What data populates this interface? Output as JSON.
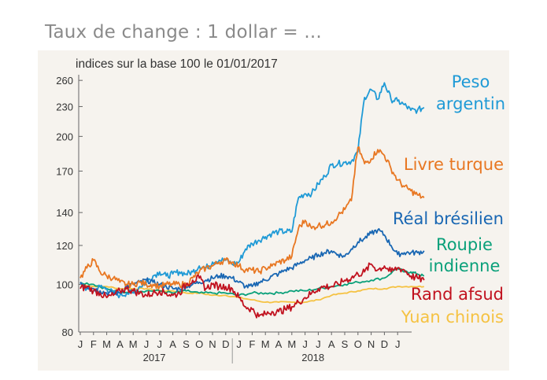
{
  "title": "Taux de change : 1 dollar = ...",
  "chart_data": {
    "type": "line",
    "subtitle": "indices sur la base 100 le 01/01/2017",
    "y_scale": "log",
    "ylim": [
      80,
      265
    ],
    "y_ticks": [
      80,
      100,
      120,
      140,
      170,
      200,
      230,
      260
    ],
    "x_month_labels": [
      "J",
      "F",
      "M",
      "A",
      "M",
      "J",
      "J",
      "A",
      "S",
      "O",
      "N",
      "D",
      "J",
      "F",
      "M",
      "A",
      "M",
      "J",
      "J",
      "A",
      "S",
      "O",
      "N",
      "D",
      "J"
    ],
    "x_year_labels": [
      "2017",
      "2018"
    ],
    "series": [
      {
        "name": "Peso argentin",
        "color": "#1f9ad6",
        "points": [
          [
            0,
            100
          ],
          [
            0.5,
            98
          ],
          [
            1,
            97
          ],
          [
            1.5,
            99
          ],
          [
            2,
            98
          ],
          [
            2.5,
            96
          ],
          [
            3,
            95
          ],
          [
            3.5,
            96
          ],
          [
            4,
            96
          ],
          [
            4.5,
            99
          ],
          [
            5,
            101
          ],
          [
            5.5,
            104
          ],
          [
            6,
            106
          ],
          [
            6.5,
            104
          ],
          [
            7,
            105
          ],
          [
            7.5,
            106
          ],
          [
            8,
            105
          ],
          [
            8.5,
            106
          ],
          [
            9,
            109
          ],
          [
            9.5,
            108
          ],
          [
            10,
            111
          ],
          [
            10.5,
            112
          ],
          [
            11,
            112
          ],
          [
            11.5,
            110
          ],
          [
            12,
            111
          ],
          [
            12.5,
            118
          ],
          [
            13,
            121
          ],
          [
            13.5,
            123
          ],
          [
            14,
            125
          ],
          [
            14.5,
            127
          ],
          [
            15,
            128
          ],
          [
            15.5,
            128
          ],
          [
            16,
            128
          ],
          [
            16.5,
            150
          ],
          [
            17,
            153
          ],
          [
            17.5,
            153
          ],
          [
            18,
            160
          ],
          [
            18.5,
            166
          ],
          [
            19,
            175
          ],
          [
            19.5,
            176
          ],
          [
            20,
            177
          ],
          [
            20.5,
            178
          ],
          [
            21,
            186
          ],
          [
            21.5,
            240
          ],
          [
            22,
            249
          ],
          [
            22.5,
            238
          ],
          [
            23,
            257
          ],
          [
            23.5,
            238
          ],
          [
            24,
            236
          ],
          [
            24.5,
            232
          ],
          [
            25,
            226
          ],
          [
            25.5,
            226
          ],
          [
            26,
            229
          ]
        ]
      },
      {
        "name": "Livre turque",
        "color": "#e87722",
        "points": [
          [
            0,
            103
          ],
          [
            0.5,
            108
          ],
          [
            1,
            112
          ],
          [
            1.5,
            106
          ],
          [
            2,
            104
          ],
          [
            2.5,
            103
          ],
          [
            3,
            101
          ],
          [
            3.5,
            100
          ],
          [
            4,
            100
          ],
          [
            4.5,
            101
          ],
          [
            5,
            100
          ],
          [
            5.5,
            100
          ],
          [
            6,
            99
          ],
          [
            6.5,
            100
          ],
          [
            7,
            100
          ],
          [
            7.5,
            100
          ],
          [
            8,
            100
          ],
          [
            8.5,
            103
          ],
          [
            9,
            106
          ],
          [
            9.5,
            108
          ],
          [
            10,
            109
          ],
          [
            10.5,
            111
          ],
          [
            11,
            112
          ],
          [
            11.5,
            111
          ],
          [
            12,
            109
          ],
          [
            12.5,
            107
          ],
          [
            13,
            107
          ],
          [
            13.5,
            106
          ],
          [
            14,
            108
          ],
          [
            14.5,
            109
          ],
          [
            15,
            111
          ],
          [
            15.5,
            112
          ],
          [
            16,
            114
          ],
          [
            16.5,
            130
          ],
          [
            17,
            135
          ],
          [
            17.5,
            130
          ],
          [
            18,
            132
          ],
          [
            18.5,
            132
          ],
          [
            19,
            134
          ],
          [
            19.5,
            138
          ],
          [
            20,
            142
          ],
          [
            20.5,
            148
          ],
          [
            21,
            190
          ],
          [
            21.5,
            176
          ],
          [
            22,
            180
          ],
          [
            22.5,
            188
          ],
          [
            23,
            183
          ],
          [
            23.5,
            172
          ],
          [
            24,
            163
          ],
          [
            24.5,
            158
          ],
          [
            25,
            155
          ],
          [
            25.5,
            152
          ],
          [
            26,
            150
          ]
        ]
      },
      {
        "name": "Réal brésilien",
        "color": "#1967b3",
        "points": [
          [
            0,
            101
          ],
          [
            0.5,
            99
          ],
          [
            1,
            98
          ],
          [
            1.5,
            97
          ],
          [
            2,
            96
          ],
          [
            2.5,
            96
          ],
          [
            3,
            96
          ],
          [
            3.5,
            99
          ],
          [
            4,
            100
          ],
          [
            4.5,
            101
          ],
          [
            5,
            102
          ],
          [
            5.5,
            101
          ],
          [
            6,
            100
          ],
          [
            6.5,
            99
          ],
          [
            7,
            98
          ],
          [
            7.5,
            98
          ],
          [
            8,
            99
          ],
          [
            8.5,
            100
          ],
          [
            9,
            101
          ],
          [
            9.5,
            102
          ],
          [
            10,
            103
          ],
          [
            10.5,
            104
          ],
          [
            11,
            104
          ],
          [
            11.5,
            103
          ],
          [
            12,
            101
          ],
          [
            12.5,
            99
          ],
          [
            13,
            99
          ],
          [
            13.5,
            101
          ],
          [
            14,
            102
          ],
          [
            14.5,
            104
          ],
          [
            15,
            105
          ],
          [
            15.5,
            107
          ],
          [
            16,
            108
          ],
          [
            16.5,
            110
          ],
          [
            17,
            112
          ],
          [
            17.5,
            113
          ],
          [
            18,
            115
          ],
          [
            18.5,
            116
          ],
          [
            19,
            117
          ],
          [
            19.5,
            115
          ],
          [
            20,
            114
          ],
          [
            20.5,
            118
          ],
          [
            21,
            122
          ],
          [
            21.5,
            124
          ],
          [
            22,
            127
          ],
          [
            22.5,
            129
          ],
          [
            23,
            126
          ],
          [
            23.5,
            120
          ],
          [
            24,
            115
          ],
          [
            24.5,
            116
          ],
          [
            25,
            116
          ],
          [
            25.5,
            116
          ],
          [
            26,
            117
          ]
        ]
      },
      {
        "name": "Roupie indienne",
        "color": "#0aa07a",
        "points": [
          [
            0,
            101
          ],
          [
            1,
            100
          ],
          [
            2,
            98
          ],
          [
            3,
            96
          ],
          [
            4,
            97
          ],
          [
            5,
            97
          ],
          [
            6,
            97
          ],
          [
            7,
            96
          ],
          [
            8,
            97
          ],
          [
            9,
            96
          ],
          [
            10,
            96
          ],
          [
            11,
            96
          ],
          [
            12,
            95
          ],
          [
            13,
            96
          ],
          [
            14,
            96
          ],
          [
            15,
            96
          ],
          [
            16,
            97
          ],
          [
            17,
            97
          ],
          [
            18,
            98
          ],
          [
            19,
            99
          ],
          [
            20,
            100
          ],
          [
            21,
            101
          ],
          [
            22,
            102
          ],
          [
            23,
            103
          ],
          [
            24,
            108
          ],
          [
            24.5,
            106
          ],
          [
            25,
            106
          ],
          [
            25.5,
            105
          ],
          [
            26,
            104
          ]
        ]
      },
      {
        "name": "Rand afsud",
        "color": "#c1121f",
        "points": [
          [
            0,
            98
          ],
          [
            0.5,
            99
          ],
          [
            1,
            97
          ],
          [
            1.5,
            96
          ],
          [
            2,
            94
          ],
          [
            2.5,
            95
          ],
          [
            3,
            97
          ],
          [
            3.5,
            98
          ],
          [
            4,
            97
          ],
          [
            4.5,
            96
          ],
          [
            5,
            95
          ],
          [
            5.5,
            96
          ],
          [
            6,
            97
          ],
          [
            6.5,
            96
          ],
          [
            7,
            95
          ],
          [
            7.5,
            96
          ],
          [
            8,
            100
          ],
          [
            8.5,
            102
          ],
          [
            9,
            103
          ],
          [
            9.5,
            98
          ],
          [
            10,
            100
          ],
          [
            10.5,
            99
          ],
          [
            11,
            99
          ],
          [
            11.5,
            98
          ],
          [
            12,
            94
          ],
          [
            12.5,
            90
          ],
          [
            13,
            89
          ],
          [
            13.5,
            86
          ],
          [
            14,
            87
          ],
          [
            14.5,
            88
          ],
          [
            15,
            88
          ],
          [
            15.5,
            89
          ],
          [
            16,
            90
          ],
          [
            16.5,
            92
          ],
          [
            17,
            94
          ],
          [
            17.5,
            96
          ],
          [
            18,
            98
          ],
          [
            18.5,
            99
          ],
          [
            19,
            99
          ],
          [
            19.5,
            100
          ],
          [
            20,
            102
          ],
          [
            20.5,
            103
          ],
          [
            21,
            105
          ],
          [
            21.5,
            106
          ],
          [
            22,
            110
          ],
          [
            22.5,
            107
          ],
          [
            23,
            109
          ],
          [
            23.5,
            106
          ],
          [
            24,
            108
          ],
          [
            24.5,
            107
          ],
          [
            25,
            104
          ],
          [
            25.5,
            103
          ],
          [
            26,
            102
          ]
        ]
      },
      {
        "name": "Yuan chinois",
        "color": "#f5c242",
        "points": [
          [
            0,
            100
          ],
          [
            1,
            99
          ],
          [
            2,
            99
          ],
          [
            3,
            98
          ],
          [
            4,
            98
          ],
          [
            5,
            98
          ],
          [
            6,
            97
          ],
          [
            7,
            97
          ],
          [
            8,
            96
          ],
          [
            9,
            96
          ],
          [
            10,
            95
          ],
          [
            11,
            95
          ],
          [
            12,
            94
          ],
          [
            13,
            93
          ],
          [
            14,
            92
          ],
          [
            15,
            92
          ],
          [
            16,
            92
          ],
          [
            17,
            92
          ],
          [
            18,
            93
          ],
          [
            19,
            95
          ],
          [
            20,
            96
          ],
          [
            21,
            97
          ],
          [
            22,
            98
          ],
          [
            23,
            98
          ],
          [
            24,
            99
          ],
          [
            25,
            99
          ],
          [
            26,
            99
          ]
        ]
      }
    ]
  }
}
